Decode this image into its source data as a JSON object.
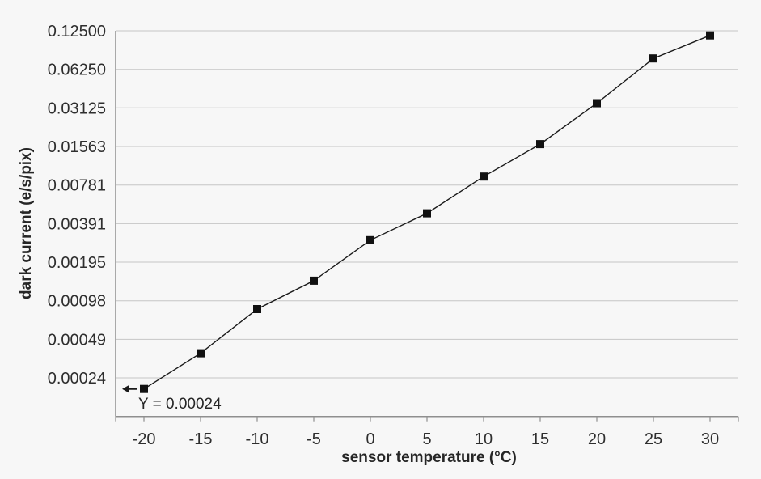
{
  "figure": {
    "background": "#f7f7f7"
  },
  "chart_data": {
    "type": "line",
    "title": "",
    "xlabel": "sensor temperature (°C)",
    "ylabel": "dark current (e/s/pix)",
    "x": [
      -20,
      -15,
      -10,
      -5,
      0,
      5,
      10,
      15,
      20,
      25,
      30
    ],
    "x_tick_labels": [
      "-20",
      "-15",
      "-10",
      "-5",
      "0",
      "5",
      "10",
      "15",
      "20",
      "25",
      "30"
    ],
    "series": [
      {
        "name": "dark current",
        "values": [
          0.0002,
          0.00038,
          0.00084,
          0.0014,
          0.0029,
          0.0047,
          0.0091,
          0.0163,
          0.034,
          0.076,
          0.115
        ]
      }
    ],
    "y_scale": "log2",
    "ylim": [
      0.0001220703125,
      0.125
    ],
    "y_tick_values": [
      0.125,
      0.0625,
      0.03125,
      0.015625,
      0.0078125,
      0.00390625,
      0.001953125,
      0.0009765625,
      0.00048828125,
      0.000244140625
    ],
    "y_tick_labels": [
      "0.12500",
      "0.06250",
      "0.03125",
      "0.01563",
      "0.00781",
      "0.00391",
      "0.00195",
      "0.00098",
      "0.00049",
      "0.00024"
    ],
    "grid": "horizontal",
    "legend": "none",
    "annotation": {
      "text": "Y = 0.00024",
      "target_x": -20,
      "arrow_direction": "left"
    },
    "colors": {
      "line": "#1a1a1a",
      "marker": "#111111",
      "grid": "#c6c6c6",
      "axis": "#8f8f8f",
      "text": "#262626",
      "background": "#f7f7f7"
    }
  }
}
